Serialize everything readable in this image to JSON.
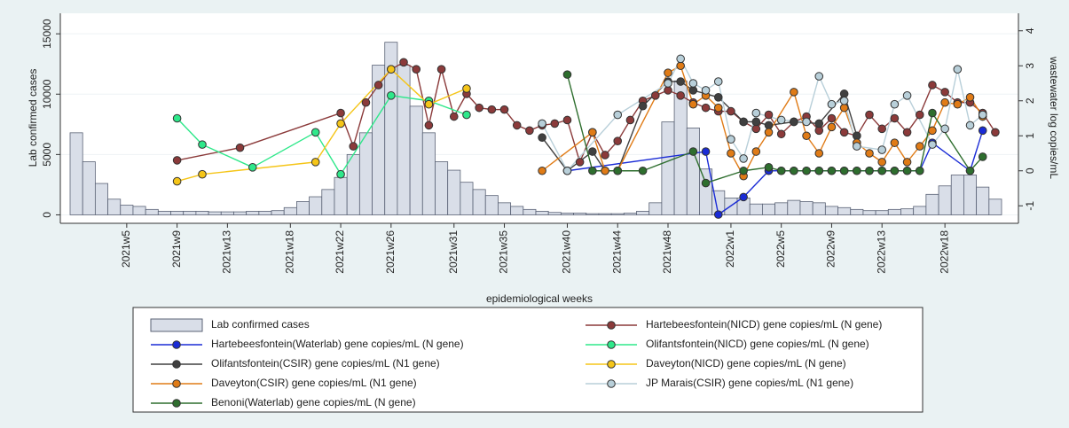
{
  "chart_data": {
    "type": "combo",
    "x_label": "epidemiological weeks",
    "y_label": "Lab confirmed cases",
    "y2_label": "wastewater log copies/mL",
    "categories": [
      null,
      null,
      null,
      null,
      "2021w5",
      null,
      null,
      null,
      "2021w9",
      null,
      null,
      null,
      "2021w13",
      null,
      null,
      null,
      null,
      "2021w18",
      null,
      null,
      null,
      "2021w22",
      null,
      null,
      null,
      "2021w26",
      null,
      null,
      null,
      null,
      "2021w31",
      null,
      null,
      null,
      "2021w35",
      null,
      null,
      null,
      null,
      "2021w40",
      null,
      null,
      null,
      "2021w44",
      null,
      null,
      null,
      "2021w48",
      null,
      null,
      null,
      null,
      "2022w1",
      null,
      null,
      null,
      "2022w5",
      null,
      null,
      null,
      "2022w9",
      null,
      null,
      null,
      "2022w13",
      null,
      null,
      null,
      null,
      "2022w18",
      null,
      null,
      null,
      null
    ],
    "ylim": [
      -700,
      16700
    ],
    "yticks": [
      0,
      5000,
      10000,
      15000
    ],
    "y2lim": [
      -1.5,
      4.5
    ],
    "y2ticks": [
      -1,
      0,
      1,
      2,
      3,
      4
    ],
    "grid": true,
    "series": [
      {
        "name": "Lab confirmed cases",
        "type": "bar",
        "axis": "y",
        "color": "#d9dee8",
        "values": [
          6800,
          4400,
          2600,
          1300,
          800,
          700,
          450,
          300,
          300,
          300,
          300,
          250,
          250,
          250,
          300,
          300,
          350,
          600,
          1100,
          1500,
          2100,
          3100,
          5000,
          6800,
          12400,
          14300,
          12400,
          9000,
          6800,
          4400,
          3700,
          2700,
          2100,
          1600,
          1000,
          700,
          450,
          300,
          200,
          150,
          150,
          100,
          100,
          100,
          150,
          300,
          1000,
          7700,
          11100,
          7200,
          3800,
          2000,
          1400,
          1400,
          900,
          900,
          1000,
          1200,
          1100,
          1000,
          700,
          600,
          450,
          350,
          350,
          450,
          500,
          700,
          1700,
          2400,
          3300,
          3300,
          2300,
          1300
        ]
      },
      {
        "name": "Hartebeesfontein(NICD) gene copies/mL (N gene)",
        "type": "line",
        "axis": "y2",
        "color": "#8b3a3a",
        "values": [
          null,
          null,
          null,
          null,
          null,
          null,
          null,
          null,
          0.3,
          null,
          null,
          null,
          null,
          0.66,
          null,
          null,
          null,
          null,
          null,
          null,
          null,
          1.65,
          0.7,
          1.95,
          2.45,
          2.9,
          3.1,
          2.9,
          1.3,
          2.9,
          1.55,
          2.2,
          1.8,
          1.75,
          1.75,
          1.3,
          1.15,
          1.3,
          1.35,
          1.45,
          0.25,
          1.1,
          0.45,
          0.85,
          1.45,
          2.0,
          2.15,
          2.3,
          2.15,
          1.95,
          1.8,
          1.7,
          1.7,
          1.4,
          1.2,
          1.6,
          1.05,
          1.4,
          1.55,
          1.15,
          1.5,
          1.1,
          1.0,
          1.6,
          1.2,
          1.5,
          1.1,
          1.6,
          2.45,
          2.25,
          1.95,
          1.95,
          1.65,
          1.1
        ]
      },
      {
        "name": "Hartebeesfontein(Waterlab) gene copies/mL (N gene)",
        "type": "line",
        "axis": "y2",
        "color": "#1a2bd6",
        "values": [
          null,
          null,
          null,
          null,
          null,
          null,
          null,
          null,
          null,
          null,
          null,
          null,
          null,
          null,
          null,
          null,
          null,
          null,
          null,
          null,
          null,
          null,
          null,
          null,
          null,
          null,
          null,
          null,
          null,
          null,
          null,
          null,
          null,
          null,
          null,
          null,
          null,
          null,
          null,
          0,
          null,
          null,
          null,
          null,
          null,
          null,
          null,
          null,
          null,
          null,
          0.55,
          -1.25,
          null,
          -0.75,
          null,
          0,
          0,
          0,
          0,
          0,
          0,
          0,
          0,
          0,
          0,
          0,
          0,
          0,
          0.8,
          null,
          null,
          0,
          1.15,
          null
        ]
      },
      {
        "name": "Olifantsfontein(NICD) gene copies/mL (N gene)",
        "type": "line",
        "axis": "y2",
        "color": "#2ee88a",
        "values": [
          null,
          null,
          null,
          null,
          null,
          null,
          null,
          null,
          1.5,
          null,
          0.75,
          null,
          null,
          null,
          0.1,
          null,
          null,
          null,
          null,
          1.1,
          null,
          -0.1,
          null,
          null,
          null,
          2.15,
          null,
          null,
          2.0,
          null,
          null,
          1.6,
          null,
          null,
          null,
          null,
          null,
          null,
          null,
          null,
          null,
          null,
          null,
          null,
          null,
          null,
          null,
          null,
          null,
          null,
          null,
          null,
          null,
          null,
          null,
          null,
          null,
          null,
          null,
          null,
          null,
          null,
          null,
          null,
          null,
          null,
          null,
          null,
          null,
          null,
          null,
          null,
          null,
          null
        ]
      },
      {
        "name": "Olifantsfontein(CSIR) gene copies/mL (N1 gene)",
        "type": "line",
        "axis": "y2",
        "color": "#404040",
        "values": [
          null,
          null,
          null,
          null,
          null,
          null,
          null,
          null,
          null,
          null,
          null,
          null,
          null,
          null,
          null,
          null,
          null,
          null,
          null,
          null,
          null,
          null,
          null,
          null,
          null,
          null,
          null,
          null,
          null,
          null,
          null,
          null,
          null,
          null,
          null,
          null,
          null,
          0.95,
          null,
          0,
          null,
          0.55,
          0,
          0,
          null,
          1.85,
          null,
          2.55,
          2.55,
          2.3,
          null,
          2.1,
          null,
          1.4,
          1.4,
          1.3,
          null,
          1.4,
          null,
          1.35,
          null,
          2.2,
          1.0,
          null,
          null,
          null,
          null,
          null,
          null,
          null,
          null,
          null,
          null,
          null
        ]
      },
      {
        "name": "Daveyton(NICD) gene copies/mL (N gene)",
        "type": "line",
        "axis": "y2",
        "color": "#f5c518",
        "values": [
          null,
          null,
          null,
          null,
          null,
          null,
          null,
          null,
          -0.3,
          null,
          -0.1,
          null,
          null,
          null,
          null,
          null,
          null,
          null,
          null,
          0.25,
          null,
          1.35,
          null,
          null,
          null,
          2.9,
          null,
          null,
          1.9,
          null,
          null,
          2.35,
          null,
          null,
          null,
          null,
          null,
          null,
          null,
          null,
          null,
          null,
          null,
          null,
          null,
          null,
          null,
          null,
          null,
          null,
          null,
          null,
          null,
          null,
          null,
          null,
          null,
          null,
          null,
          null,
          null,
          null,
          null,
          null,
          null,
          null,
          null,
          null,
          null,
          null,
          null,
          null,
          null,
          null
        ]
      },
      {
        "name": "Daveyton(CSIR) gene copies/mL (N1 gene)",
        "type": "line",
        "axis": "y2",
        "color": "#e07b16",
        "values": [
          null,
          null,
          null,
          null,
          null,
          null,
          null,
          null,
          null,
          null,
          null,
          null,
          null,
          null,
          null,
          null,
          null,
          null,
          null,
          null,
          null,
          null,
          null,
          null,
          null,
          null,
          null,
          null,
          null,
          null,
          null,
          null,
          null,
          null,
          null,
          null,
          null,
          0,
          null,
          null,
          null,
          1.1,
          0,
          0,
          null,
          null,
          null,
          2.8,
          3.0,
          1.9,
          2.15,
          1.8,
          0.5,
          -0.15,
          0.55,
          1.1,
          null,
          2.25,
          1.0,
          0.5,
          1.25,
          1.8,
          0.8,
          0.5,
          0.25,
          0.8,
          0.25,
          0.7,
          1.15,
          1.95,
          1.9,
          2.1,
          1.55,
          null
        ]
      },
      {
        "name": "JP Marais(CSIR) gene copies/mL (N1 gene)",
        "type": "line",
        "axis": "y2",
        "color": "#b8cfd9",
        "values": [
          null,
          null,
          null,
          null,
          null,
          null,
          null,
          null,
          null,
          null,
          null,
          null,
          null,
          null,
          null,
          null,
          null,
          null,
          null,
          null,
          null,
          null,
          null,
          null,
          null,
          null,
          null,
          null,
          null,
          null,
          null,
          null,
          null,
          null,
          null,
          null,
          null,
          1.35,
          null,
          0,
          null,
          null,
          null,
          1.6,
          null,
          null,
          null,
          2.5,
          3.2,
          2.5,
          2.3,
          2.55,
          0.9,
          0.35,
          1.65,
          null,
          1.45,
          null,
          1.4,
          2.7,
          1.9,
          2.0,
          0.7,
          null,
          0.6,
          1.9,
          2.15,
          null,
          0.75,
          1.2,
          2.9,
          1.3,
          1.6,
          null
        ]
      },
      {
        "name": "Benoni(Waterlab) gene copies/mL (N gene)",
        "type": "line",
        "axis": "y2",
        "color": "#2e6e2e",
        "values": [
          null,
          null,
          null,
          null,
          null,
          null,
          null,
          null,
          null,
          null,
          null,
          null,
          null,
          null,
          null,
          null,
          null,
          null,
          null,
          null,
          null,
          null,
          null,
          null,
          null,
          null,
          null,
          null,
          null,
          null,
          null,
          null,
          null,
          null,
          null,
          null,
          null,
          null,
          null,
          2.75,
          null,
          0,
          null,
          0,
          null,
          0,
          null,
          null,
          null,
          0.55,
          -0.35,
          null,
          null,
          0,
          null,
          0.1,
          0,
          0,
          0,
          0,
          0,
          0,
          0,
          0,
          0,
          0,
          0,
          0,
          1.65,
          null,
          null,
          0,
          0.4,
          null
        ]
      }
    ]
  }
}
